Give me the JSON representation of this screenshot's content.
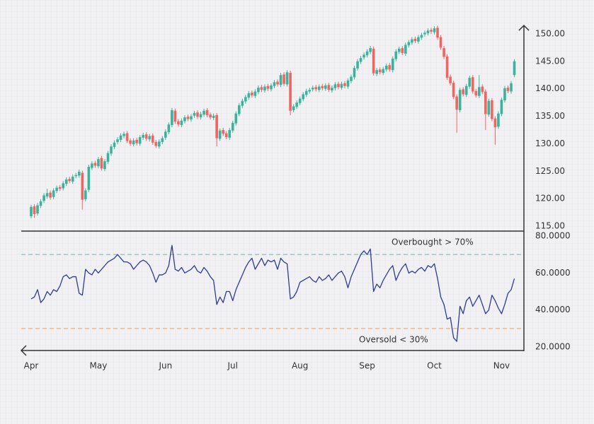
{
  "chart_data": [
    {
      "type": "candlestick",
      "categories": [
        "Apr",
        null,
        null,
        null,
        null,
        null,
        null,
        null,
        null,
        null,
        null,
        null,
        null,
        null,
        null,
        null,
        null,
        null,
        null,
        null,
        null,
        "May",
        null,
        null,
        null,
        null,
        null,
        null,
        null,
        null,
        null,
        null,
        null,
        null,
        null,
        null,
        null,
        null,
        null,
        null,
        null,
        null,
        "Jun",
        null,
        null,
        null,
        null,
        null,
        null,
        null,
        null,
        null,
        null,
        null,
        null,
        null,
        null,
        null,
        null,
        null,
        null,
        null,
        null,
        "Jul",
        null,
        null,
        null,
        null,
        null,
        null,
        null,
        null,
        null,
        null,
        null,
        null,
        null,
        null,
        null,
        null,
        null,
        null,
        null,
        null,
        "Aug",
        null,
        null,
        null,
        null,
        null,
        null,
        null,
        null,
        null,
        null,
        null,
        null,
        null,
        null,
        null,
        null,
        null,
        null,
        null,
        null,
        "Sep",
        null,
        null,
        null,
        null,
        null,
        null,
        null,
        null,
        null,
        null,
        null,
        null,
        null,
        null,
        null,
        null,
        null,
        null,
        null,
        null,
        "Oct",
        null,
        null,
        null,
        null,
        null,
        null,
        null,
        null,
        null,
        null,
        null,
        null,
        null,
        null,
        null,
        null,
        null,
        null,
        null,
        null,
        "Nov",
        null,
        null,
        null,
        null
      ],
      "open": [
        116.8,
        118.6,
        117.3,
        118.7,
        119.6,
        120.4,
        121.1,
        120.3,
        121.4,
        122.1,
        121.9,
        122.7,
        123.6,
        123.1,
        124.1,
        124.2,
        124.7,
        119.9,
        121.6,
        125.6,
        126.5,
        125.9,
        127.4,
        125.4,
        126.7,
        128.2,
        129.4,
        130.3,
        130.7,
        131.4,
        131.9,
        130.6,
        129.9,
        130.7,
        130.0,
        131.1,
        131.7,
        130.8,
        131.5,
        130.3,
        129.5,
        130.3,
        131.1,
        132.1,
        133.4,
        136.0,
        134.1,
        133.4,
        134.1,
        134.9,
        134.4,
        135.1,
        135.7,
        134.8,
        135.3,
        136.1,
        135.3,
        134.7,
        135.2,
        130.9,
        132.5,
        131.9,
        131.1,
        132.4,
        133.7,
        135.4,
        136.9,
        137.7,
        138.4,
        139.3,
        138.7,
        139.4,
        140.3,
        139.7,
        140.5,
        139.9,
        140.5,
        141.3,
        140.7,
        142.6,
        140.8,
        142.9,
        136.1,
        136.7,
        137.4,
        138.1,
        138.9,
        139.5,
        139.9,
        140.3,
        139.8,
        140.5,
        140.0,
        140.7,
        139.7,
        140.1,
        140.9,
        140.2,
        141.0,
        140.4,
        141.4,
        142.1,
        143.7,
        144.9,
        145.7,
        146.1,
        146.7,
        147.3,
        142.7,
        143.5,
        142.9,
        143.5,
        144.3,
        143.4,
        145.4,
        146.7,
        147.4,
        146.4,
        147.9,
        148.4,
        149.1,
        148.6,
        149.3,
        149.9,
        150.1,
        150.7,
        150.3,
        151.1,
        149.4,
        147.4,
        145.9,
        142.2,
        141.1,
        138.6,
        136.1,
        139.9,
        138.9,
        140.4,
        142.1,
        139.6,
        138.7,
        140.4,
        139.5,
        135.3,
        137.9,
        134.6,
        133.1,
        135.4,
        137.9,
        140.2,
        139.5,
        142.5
      ],
      "high": [
        118.9,
        119.0,
        119.2,
        119.9,
        121.0,
        121.8,
        121.5,
        121.9,
        122.4,
        122.5,
        123.2,
        123.9,
        124.0,
        124.4,
        124.7,
        125.3,
        125.1,
        121.9,
        126.2,
        126.8,
        126.9,
        127.6,
        127.8,
        127.2,
        128.7,
        129.9,
        130.6,
        131.2,
        131.9,
        132.2,
        132.3,
        131.0,
        131.0,
        131.1,
        131.6,
        132.0,
        132.1,
        131.8,
        131.9,
        130.7,
        130.8,
        131.4,
        132.6,
        133.9,
        136.5,
        136.4,
        134.5,
        134.6,
        135.2,
        135.3,
        135.4,
        136.0,
        136.1,
        135.8,
        136.4,
        136.5,
        135.7,
        135.5,
        135.6,
        132.8,
        132.9,
        132.3,
        132.9,
        134.2,
        135.9,
        137.4,
        138.2,
        138.9,
        139.6,
        139.7,
        139.9,
        140.6,
        140.7,
        140.8,
        140.9,
        141.0,
        141.6,
        141.7,
        142.9,
        143.0,
        143.4,
        143.3,
        137.2,
        137.9,
        138.6,
        139.4,
        140.0,
        140.2,
        140.6,
        140.7,
        140.8,
        140.9,
        141.0,
        141.1,
        140.6,
        141.2,
        141.3,
        141.3,
        141.4,
        141.9,
        142.6,
        144.2,
        145.4,
        146.0,
        146.6,
        147.2,
        147.8,
        147.7,
        143.8,
        143.9,
        144.0,
        144.6,
        144.7,
        145.9,
        147.2,
        147.7,
        147.8,
        148.4,
        148.9,
        149.4,
        149.5,
        149.8,
        150.2,
        150.6,
        151.0,
        151.1,
        151.4,
        151.5,
        149.8,
        147.8,
        146.3,
        142.6,
        141.5,
        139.0,
        140.2,
        140.3,
        140.9,
        142.4,
        142.5,
        140.0,
        142.5,
        140.8,
        139.9,
        138.2,
        138.3,
        135.0,
        135.9,
        138.4,
        140.5,
        140.6,
        141.4,
        145.4
      ],
      "low": [
        116.4,
        116.5,
        116.9,
        118.3,
        119.2,
        120.0,
        119.8,
        119.9,
        121.0,
        121.4,
        121.5,
        122.3,
        122.8,
        122.7,
        123.7,
        123.8,
        118.0,
        119.5,
        121.2,
        125.2,
        125.6,
        125.5,
        125.1,
        125.0,
        126.3,
        127.8,
        129.0,
        129.9,
        130.3,
        131.0,
        130.1,
        129.6,
        129.5,
        129.7,
        129.6,
        130.7,
        130.5,
        130.4,
        129.8,
        129.2,
        129.1,
        129.9,
        130.7,
        131.7,
        133.0,
        133.6,
        133.1,
        133.0,
        133.7,
        134.1,
        134.0,
        134.7,
        134.5,
        134.4,
        134.9,
        134.8,
        134.4,
        134.3,
        129.5,
        130.5,
        131.4,
        130.8,
        130.7,
        132.0,
        133.3,
        135.0,
        136.5,
        137.3,
        138.0,
        138.4,
        138.3,
        139.0,
        139.4,
        139.3,
        139.6,
        139.5,
        140.1,
        140.4,
        140.3,
        140.5,
        140.4,
        135.2,
        135.7,
        136.3,
        137.0,
        137.7,
        138.5,
        139.1,
        139.5,
        139.5,
        139.4,
        139.7,
        139.6,
        139.4,
        139.3,
        139.7,
        139.9,
        139.8,
        140.1,
        140.0,
        141.0,
        141.7,
        143.3,
        144.5,
        145.3,
        145.7,
        146.3,
        142.4,
        142.3,
        142.6,
        142.5,
        143.1,
        143.1,
        143.0,
        145.0,
        146.3,
        146.1,
        146.0,
        147.5,
        148.0,
        148.3,
        148.2,
        148.9,
        149.5,
        149.7,
        150.0,
        149.9,
        148.9,
        147.1,
        145.4,
        141.6,
        140.6,
        138.1,
        132.0,
        135.7,
        138.6,
        138.5,
        140.0,
        139.1,
        138.4,
        138.3,
        139.0,
        132.5,
        134.9,
        134.1,
        129.8,
        132.7,
        135.0,
        137.5,
        139.2,
        139.1,
        142.1
      ],
      "close": [
        118.5,
        117.2,
        118.8,
        119.5,
        120.6,
        121.0,
        120.2,
        121.5,
        122.0,
        121.8,
        122.8,
        123.5,
        123.2,
        124.0,
        124.3,
        124.9,
        119.8,
        121.5,
        125.8,
        126.4,
        126.0,
        127.2,
        125.5,
        126.8,
        128.3,
        129.5,
        130.2,
        130.8,
        131.5,
        131.8,
        130.5,
        130.0,
        130.6,
        130.1,
        131.2,
        131.6,
        130.9,
        131.4,
        130.2,
        129.6,
        130.4,
        131.0,
        132.2,
        133.5,
        136.1,
        134.0,
        133.5,
        134.2,
        134.8,
        134.5,
        135.0,
        135.6,
        134.9,
        135.4,
        136.0,
        135.2,
        134.8,
        135.1,
        131.0,
        132.4,
        131.8,
        131.2,
        132.5,
        133.8,
        135.5,
        137.0,
        137.8,
        138.5,
        139.2,
        138.8,
        139.5,
        140.2,
        139.8,
        140.4,
        140.0,
        140.6,
        141.2,
        140.8,
        142.5,
        140.9,
        143.0,
        136.0,
        136.8,
        137.5,
        138.2,
        139.0,
        139.6,
        139.8,
        140.2,
        139.9,
        140.4,
        140.1,
        140.6,
        139.8,
        140.2,
        140.8,
        140.3,
        140.9,
        140.5,
        141.5,
        142.2,
        143.8,
        145.0,
        145.6,
        146.2,
        146.8,
        147.4,
        142.8,
        143.4,
        143.0,
        143.6,
        144.2,
        143.5,
        145.5,
        146.8,
        147.3,
        146.5,
        148.0,
        148.5,
        149.0,
        148.7,
        149.4,
        149.8,
        150.2,
        150.6,
        150.4,
        151.0,
        149.3,
        147.5,
        145.8,
        142.0,
        141.0,
        138.5,
        136.2,
        139.8,
        139.0,
        140.5,
        142.0,
        139.5,
        138.8,
        140.3,
        139.4,
        135.4,
        137.8,
        134.5,
        133.0,
        135.5,
        138.0,
        140.1,
        139.6,
        141.0,
        145.0
      ],
      "up_color": "#3bb39c",
      "down_color": "#ef6561",
      "ylim": [
        114.1,
        152.3
      ],
      "yticks": [
        {
          "value": 115,
          "label": "115.00"
        },
        {
          "value": 120,
          "label": "120.00"
        },
        {
          "value": 125,
          "label": "125.00"
        },
        {
          "value": 130,
          "label": "130.00"
        },
        {
          "value": 135,
          "label": "135.00"
        },
        {
          "value": 140,
          "label": "140.00"
        },
        {
          "value": 145,
          "label": "145.00"
        },
        {
          "value": 150,
          "label": "150.00"
        }
      ],
      "grid": true
    },
    {
      "type": "line",
      "values": [
        46,
        47,
        51,
        44,
        46,
        50,
        48,
        51,
        50,
        53,
        58,
        59,
        57,
        58,
        58,
        49,
        48,
        62,
        60,
        59,
        62,
        60,
        62,
        64,
        66,
        67,
        68,
        70,
        68,
        66,
        66,
        65,
        62,
        64,
        66,
        67,
        66,
        64,
        60,
        55,
        59,
        59,
        60,
        64,
        75,
        62,
        61,
        63,
        60,
        61,
        62,
        64,
        61,
        60,
        63,
        61,
        58,
        56,
        43,
        47,
        44,
        50,
        50,
        45,
        51,
        55,
        59,
        63,
        66,
        68,
        62,
        65,
        68,
        64,
        67,
        66,
        67,
        62,
        68,
        66,
        65,
        46,
        47,
        50,
        55,
        56,
        57,
        58,
        56,
        55,
        58,
        56,
        57,
        59,
        56,
        58,
        60,
        61,
        58,
        52,
        58,
        62,
        66,
        70,
        72,
        70,
        73,
        50,
        54,
        52,
        56,
        59,
        62,
        64,
        56,
        60,
        63,
        65,
        60,
        61,
        60,
        62,
        63,
        61,
        64,
        63,
        65,
        57,
        47,
        43,
        35,
        36,
        25,
        23,
        42,
        38,
        45,
        47,
        42,
        45,
        48,
        43,
        38,
        40,
        48,
        45,
        41,
        38,
        43,
        49,
        51,
        57
      ],
      "color": "#2e3b8f",
      "ylim": [
        17.7,
        82.3
      ],
      "yticks": [
        {
          "value": 20,
          "label": "20.0000"
        },
        {
          "value": 40,
          "label": "40.0000"
        },
        {
          "value": 60,
          "label": "60.0000"
        },
        {
          "value": 80,
          "label": "80.0000"
        }
      ],
      "overbought": {
        "value": 70,
        "label": "Overbought > 70%",
        "color": "#8ec3c3"
      },
      "oversold": {
        "value": 30,
        "label": "Oversold < 30%",
        "color": "#f4b27c"
      },
      "grid": true
    }
  ]
}
